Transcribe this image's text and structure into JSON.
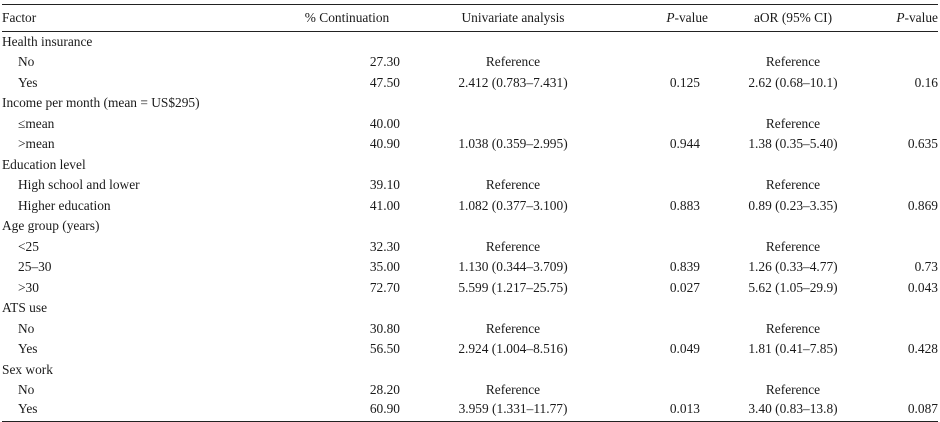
{
  "headers": {
    "factor": "Factor",
    "continuation": "% Continuation",
    "univariate": "Univariate analysis",
    "p_italic": "P",
    "p_suffix": "-value",
    "aor": "aOR (95% CI)",
    "p2_italic": "P",
    "p2_suffix": "-value"
  },
  "rows": [
    {
      "type": "group",
      "factor": "Health insurance"
    },
    {
      "type": "item",
      "factor": "No",
      "cont": "27.30",
      "uni": "Reference",
      "p1": "",
      "aor": "Reference",
      "p2": ""
    },
    {
      "type": "item",
      "factor": "Yes",
      "cont": "47.50",
      "uni": "2.412 (0.783–7.431)",
      "p1": "0.125",
      "aor": "2.62 (0.68–10.1)",
      "p2": "0.16"
    },
    {
      "type": "group",
      "factor": "Income per month (mean = US$295)"
    },
    {
      "type": "item",
      "factor": "≤mean",
      "cont": "40.00",
      "uni": "",
      "p1": "",
      "aor": "Reference",
      "p2": ""
    },
    {
      "type": "item",
      "factor": ">mean",
      "cont": "40.90",
      "uni": "1.038 (0.359–2.995)",
      "p1": "0.944",
      "aor": "1.38 (0.35–5.40)",
      "p2": "0.635"
    },
    {
      "type": "group",
      "factor": "Education level"
    },
    {
      "type": "item",
      "factor": "High school and lower",
      "cont": "39.10",
      "uni": "Reference",
      "p1": "",
      "aor": "Reference",
      "p2": ""
    },
    {
      "type": "item",
      "factor": "Higher education",
      "cont": "41.00",
      "uni": "1.082 (0.377–3.100)",
      "p1": "0.883",
      "aor": "0.89 (0.23–3.35)",
      "p2": "0.869"
    },
    {
      "type": "group",
      "factor": "Age group (years)"
    },
    {
      "type": "item",
      "factor": "<25",
      "cont": "32.30",
      "uni": "Reference",
      "p1": "",
      "aor": "Reference",
      "p2": ""
    },
    {
      "type": "item",
      "factor": "25–30",
      "cont": "35.00",
      "uni": "1.130 (0.344–3.709)",
      "p1": "0.839",
      "aor": "1.26 (0.33–4.77)",
      "p2": "0.73"
    },
    {
      "type": "item",
      "factor": ">30",
      "cont": "72.70",
      "uni": "5.599 (1.217–25.75)",
      "p1": "0.027",
      "aor": "5.62 (1.05–29.9)",
      "p2": "0.043"
    },
    {
      "type": "group",
      "factor": "ATS use"
    },
    {
      "type": "item",
      "factor": "No",
      "cont": "30.80",
      "uni": "Reference",
      "p1": "",
      "aor": "Reference",
      "p2": ""
    },
    {
      "type": "item",
      "factor": "Yes",
      "cont": "56.50",
      "uni": "2.924 (1.004–8.516)",
      "p1": "0.049",
      "aor": "1.81 (0.41–7.85)",
      "p2": "0.428"
    },
    {
      "type": "group",
      "factor": "Sex work"
    },
    {
      "type": "item",
      "factor": "No",
      "cont": "28.20",
      "uni": "Reference",
      "p1": "",
      "aor": "Reference",
      "p2": ""
    },
    {
      "type": "item",
      "factor": "Yes",
      "cont": "60.90",
      "uni": "3.959 (1.331–11.77)",
      "p1": "0.013",
      "aor": "3.40 (0.83–13.8)",
      "p2": "0.087"
    }
  ]
}
